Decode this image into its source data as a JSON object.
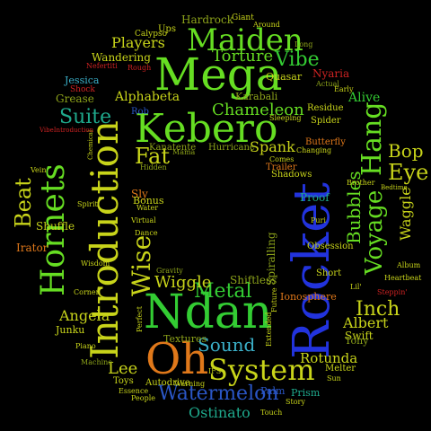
{
  "words": {
    "mega": "Mega",
    "maiden": "Maiden",
    "kebero": "Kebero",
    "rocket": "Rocket",
    "introduction": "Introduction",
    "ndan": "Ndan",
    "oh": "Oh",
    "system": "System",
    "hornets": "Hornets",
    "watermelon": "Watermelon",
    "voyage": "Voyage",
    "hang": "Hang",
    "wise": "Wise",
    "metal": "Metal",
    "torture": "Torture",
    "vibe": "Vibe",
    "players": "Players",
    "alphabeta": "Alphabeta",
    "chameleon": "Chameleon",
    "suite": "Suite",
    "beat": "Beat",
    "fat": "Fat",
    "bubbles": "Bubbles",
    "eye": "Eye",
    "inch": "Inch",
    "bop": "Bop",
    "albert": "Albert",
    "sound": "Sound",
    "angela": "Angela",
    "lee": "Lee",
    "wiggle": "Wiggle",
    "waggle": "Waggle",
    "rotunda": "Rotunda",
    "ostinato": "Ostinato",
    "spank": "Spank",
    "hardrock": "Hardrock",
    "wandering": "Wandering",
    "jessica": "Jessica",
    "grease": "Grease",
    "shuffle": "Shuffle",
    "irator": "Irator",
    "alive": "Alive",
    "quasar": "Quasar",
    "nyaria": "Nyaria",
    "karabali": "Karabali",
    "kanatente": "Kanatente",
    "hurricane": "Hurricane",
    "shiftless": "Shiftless",
    "ionosphere": "Ionosphere",
    "spiralling": "Spiralling",
    "swift": "Swift",
    "tony": "Tony",
    "prism": "Prism",
    "palm": "Palm",
    "textures": "Textures",
    "toys": "Toys",
    "autodrive": "Autodrive",
    "melter": "Melter",
    "junku": "Junku",
    "sly": "Sly",
    "bonus": "Bonus",
    "proof": "Proof",
    "short": "Short",
    "obsession": "Obsession",
    "residue": "Residue",
    "butterfly": "Butterfly",
    "shadows": "Shadows",
    "trailer": "Trailer",
    "spider": "Spider",
    "rob": "Rob",
    "ups": "Ups",
    "calypso": "Calypso",
    "giant": "Giant",
    "around": "Around",
    "long": "Long",
    "rough": "Rough",
    "shock": "Shock",
    "nefertiti": "Nefertiti",
    "actual": "Actual",
    "early": "Early",
    "sleeping": "Sleeping",
    "hidden": "Hidden",
    "comes": "Comes",
    "changing": "Changing",
    "brother": "Brother",
    "steppin": "Steppin'",
    "heartbeat": "Heartbeat",
    "album": "Album",
    "bedtime": "Bedtime",
    "lil": "Lil'",
    "mama": "Mama",
    "water": "Water",
    "virtual": "Virtual",
    "dance": "Dance",
    "spirit": "Spirit",
    "wisdom": "Wisdom",
    "corner": "Corner",
    "piano": "Piano",
    "machine": "Machine",
    "essence": "Essence",
    "people": "People",
    "warning": "Warning",
    "touch": "Touch",
    "story": "Story",
    "sun": "Sun",
    "gravity": "Gravity",
    "perfect": "Perfect",
    "extended": "Extended",
    "future": "Future",
    "puri": "Puri",
    "vein": "Vein",
    "chemical": "Chemical",
    "vibeintroduction": "VibeIntroduction",
    "ifs": "IFS"
  },
  "colors": {
    "green": "#33cc33",
    "lime": "#66dd22",
    "teal": "#1fa98c",
    "yellow": "#c8d41a",
    "blue": "#2233dd",
    "navy": "#2a56c6",
    "orange": "#e0781a",
    "red": "#cc2222",
    "cyan": "#3bb0c9",
    "olive": "#8da31a"
  }
}
